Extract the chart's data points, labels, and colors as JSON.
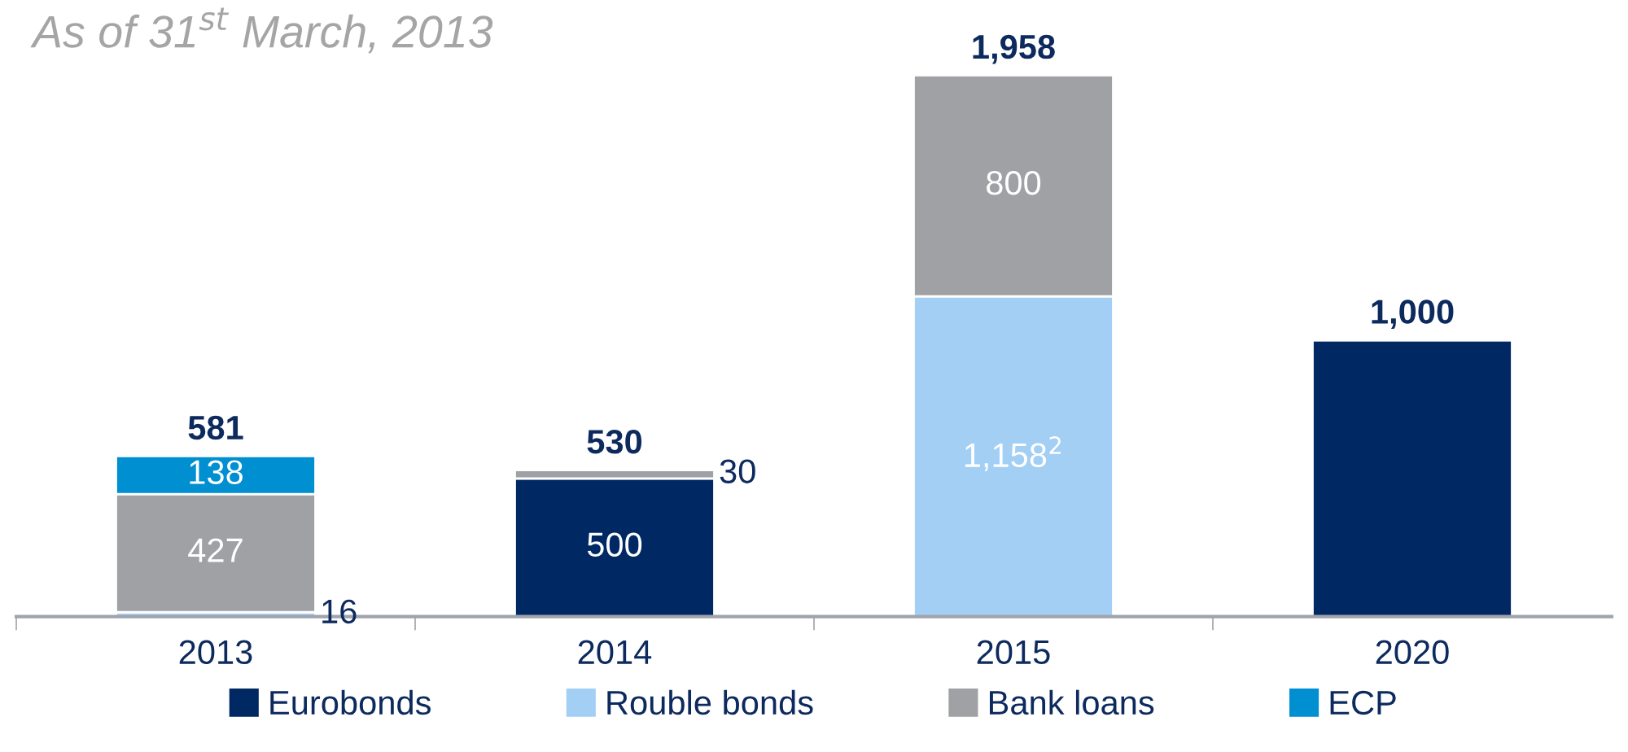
{
  "chart_data": {
    "type": "bar",
    "stacked": true,
    "title": "As of 31$^{st}$ March, 2013",
    "categories": [
      "2013",
      "2014",
      "2015",
      "2020"
    ],
    "series": [
      {
        "name": "Eurobonds",
        "color": "#002863",
        "values": [
          null,
          500,
          null,
          1000
        ],
        "value_labels": [
          null,
          "500",
          null,
          null
        ]
      },
      {
        "name": "Rouble bonds",
        "color": "#a3cff5",
        "values": [
          16,
          null,
          1158,
          null
        ],
        "value_labels": [
          "16",
          null,
          "1,158$^{2}$",
          null
        ]
      },
      {
        "name": "Bank loans",
        "color": "#a0a1a5",
        "values": [
          427,
          30,
          800,
          null
        ],
        "value_labels": [
          "427",
          "30",
          "800",
          null
        ]
      },
      {
        "name": "ECP",
        "color": "#008fd1",
        "values": [
          138,
          null,
          null,
          null
        ],
        "value_labels": [
          "138",
          null,
          null,
          null
        ]
      }
    ],
    "totals": [
      "581",
      "530",
      "1,958",
      "1,000"
    ],
    "legend": "bottom",
    "tick_labels": "x",
    "grid": false
  }
}
